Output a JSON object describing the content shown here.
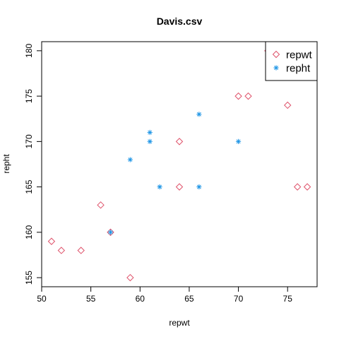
{
  "chart_data": {
    "type": "scatter",
    "title": "Davis.csv",
    "xlabel": "repwt",
    "ylabel": "repht",
    "xlim": [
      50,
      78
    ],
    "ylim": [
      154,
      181
    ],
    "xticks": [
      "50",
      "55",
      "60",
      "65",
      "70",
      "75"
    ],
    "yticks": [
      "155",
      "160",
      "165",
      "170",
      "175",
      "180"
    ],
    "legend_position": "top-right",
    "grid": false,
    "series": [
      {
        "name": "repwt",
        "marker": "diamond",
        "color": "#DF536B",
        "points": [
          [
            51,
            159
          ],
          [
            52,
            158
          ],
          [
            54,
            158
          ],
          [
            56,
            163
          ],
          [
            57,
            160
          ],
          [
            59,
            155
          ],
          [
            64,
            170
          ],
          [
            64,
            165
          ],
          [
            70,
            175
          ],
          [
            71,
            175
          ],
          [
            73,
            180
          ],
          [
            75,
            174
          ],
          [
            76,
            165
          ],
          [
            77,
            165
          ]
        ]
      },
      {
        "name": "repht",
        "marker": "asterisk",
        "color": "#2297E6",
        "points": [
          [
            57,
            160
          ],
          [
            59,
            168
          ],
          [
            61,
            171
          ],
          [
            61,
            170
          ],
          [
            62,
            165
          ],
          [
            66,
            173
          ],
          [
            66,
            165
          ],
          [
            70,
            170
          ]
        ]
      }
    ]
  }
}
